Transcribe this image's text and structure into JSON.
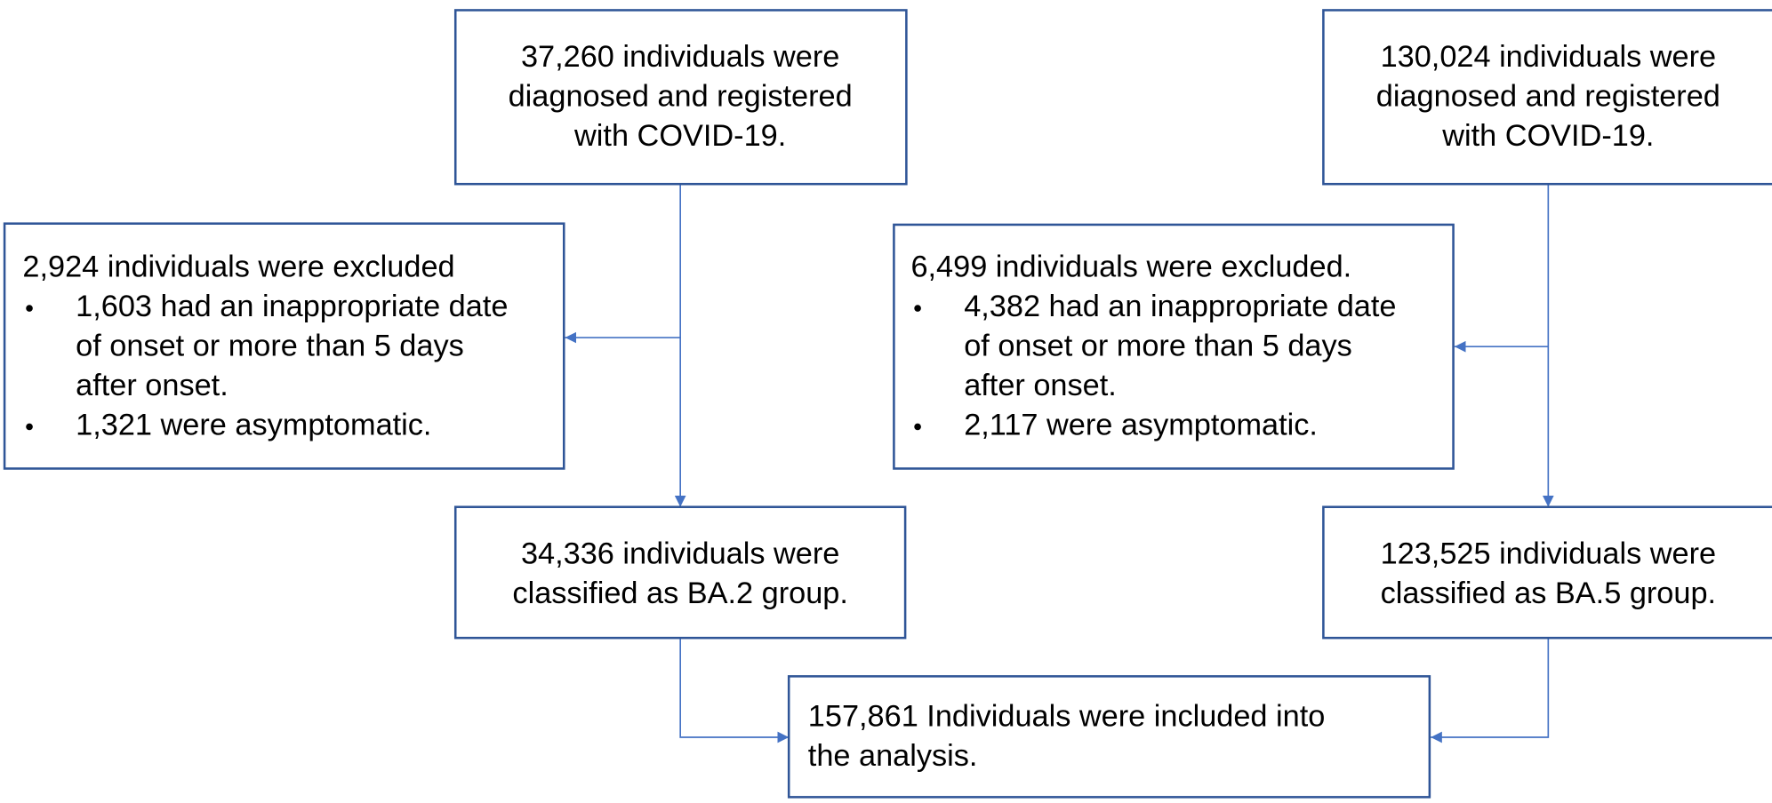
{
  "ba2_registered": {
    "lines": [
      "37,260 individuals were",
      "diagnosed and registered",
      "with COVID-19."
    ]
  },
  "ba5_registered": {
    "lines": [
      "130,024 individuals were",
      "diagnosed and registered",
      "with COVID-19."
    ]
  },
  "ba2_excluded": {
    "heading": "2,924 individuals were excluded",
    "items": [
      [
        "1,603 had an inappropriate date",
        "of onset or more than 5 days",
        "after onset."
      ],
      [
        "1,321 were asymptomatic."
      ]
    ]
  },
  "ba5_excluded": {
    "heading": "6,499 individuals were excluded.",
    "items": [
      [
        "4,382 had an inappropriate date",
        "of onset or more than 5 days",
        "after onset."
      ],
      [
        "2,117 were asymptomatic."
      ]
    ]
  },
  "ba2_group": {
    "lines": [
      "34,336 individuals were",
      "classified as BA.2 group."
    ]
  },
  "ba5_group": {
    "lines": [
      "123,525 individuals were",
      "classified as BA.5 group."
    ]
  },
  "analysis": {
    "lines": [
      "157,861 Individuals were included into",
      "the analysis."
    ]
  }
}
